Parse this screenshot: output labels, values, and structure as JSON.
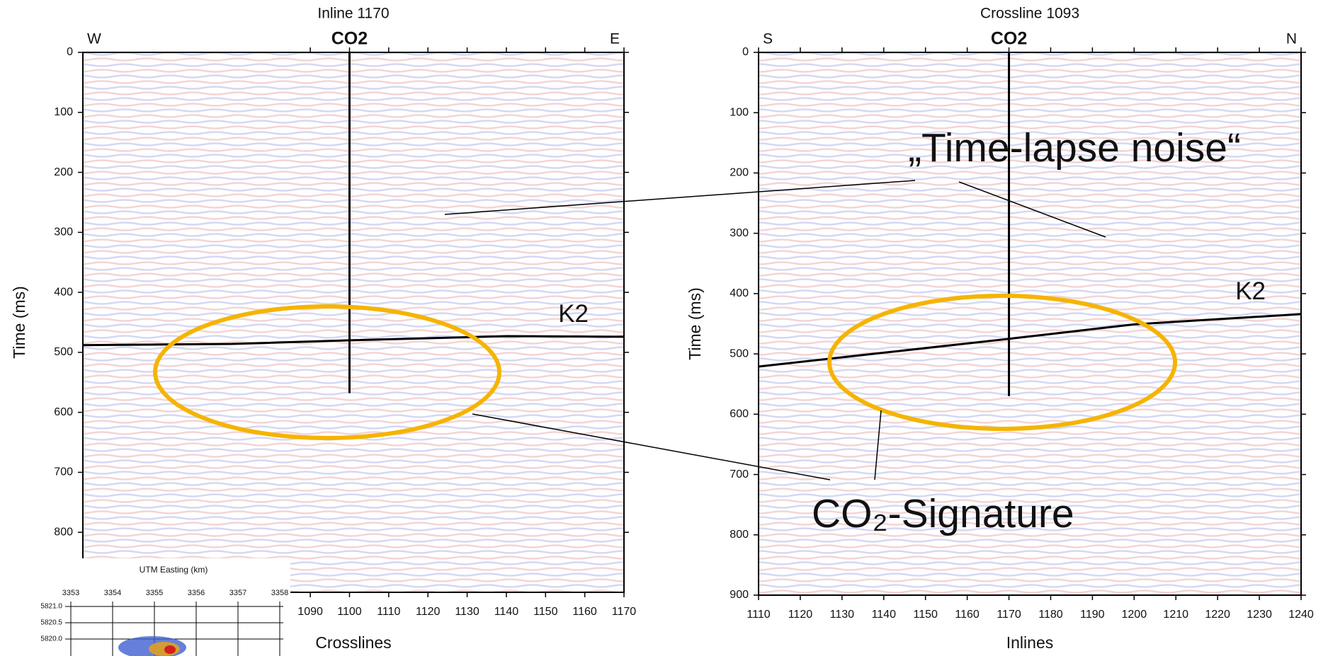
{
  "chart_data": [
    {
      "type": "seismic",
      "title": "Inline 1170",
      "compass": [
        "W",
        "E"
      ],
      "xlabel": "Crosslines",
      "ylabel": "Time (ms)",
      "xlim": [
        1032,
        1170
      ],
      "ylim": [
        0,
        900
      ],
      "xticks": [
        1090,
        1100,
        1110,
        1120,
        1130,
        1140,
        1150,
        1160,
        1170
      ],
      "yticks": [
        0,
        100,
        200,
        300,
        400,
        500,
        600,
        700,
        800
      ],
      "well": {
        "name": "CO2",
        "x": 1100,
        "bottom": 568
      },
      "horizon": {
        "name": "K2",
        "x": [
          1032,
          1070,
          1100,
          1140,
          1170
        ],
        "values": [
          488,
          486,
          480,
          473,
          474
        ]
      }
    },
    {
      "type": "seismic",
      "title": "Crossline 1093",
      "compass": [
        "S",
        "N"
      ],
      "xlabel": "Inlines",
      "ylabel": "Time (ms)",
      "xlim": [
        1110,
        1240
      ],
      "ylim": [
        0,
        900
      ],
      "xticks": [
        1110,
        1120,
        1130,
        1140,
        1150,
        1160,
        1170,
        1180,
        1190,
        1200,
        1210,
        1220,
        1230,
        1240
      ],
      "yticks": [
        0,
        100,
        200,
        300,
        400,
        500,
        600,
        700,
        800,
        900
      ],
      "well": {
        "name": "CO2",
        "x": 1170,
        "bottom": 570
      },
      "horizon": {
        "name": "K2",
        "x": [
          1110,
          1140,
          1170,
          1200,
          1240
        ],
        "values": [
          521,
          498,
          475,
          451,
          434
        ]
      }
    }
  ],
  "annotations": [
    "„Time-lapse noise“",
    "CO₂-Signature"
  ],
  "inset": {
    "title": "UTM Easting (km)",
    "xticks": [
      3353,
      3354,
      3355,
      3356,
      3357,
      3358
    ],
    "yticks": [
      {
        "value": 5821.0,
        "label": "5821.0"
      },
      {
        "value": 5820.5,
        "label": "5820.5"
      },
      {
        "value": 5820.0,
        "label": "5820.0"
      }
    ]
  }
}
